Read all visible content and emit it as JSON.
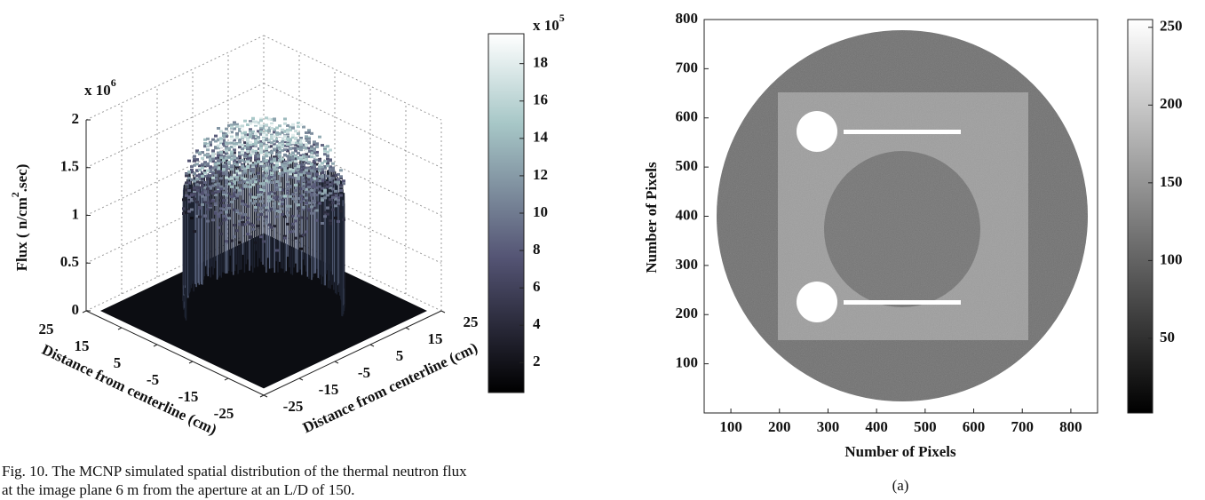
{
  "caption": [
    "Fig. 10.   The MCNP simulated spatial distribution of the thermal neutron flux",
    "at the image plane 6 m from the aperture at an L/D of 150."
  ],
  "chart_data": [
    {
      "type": "surface3d",
      "colormap": "bone",
      "grid": true,
      "xlabel": "Distance from centerline (cm)",
      "ylabel": "Distance from centerline (cm)",
      "zlabel": [
        "Flux ( n/cm",
        "2",
        ".sec)"
      ],
      "zmultiplier": [
        "x 10",
        "6"
      ],
      "xlim": [
        -25,
        25
      ],
      "xticks": [
        25,
        15,
        5,
        -5,
        -15,
        -25
      ],
      "ylim": [
        -25,
        25
      ],
      "yticks": [
        -25,
        -15,
        -5,
        5,
        15,
        25
      ],
      "zlim": [
        0,
        2
      ],
      "zticks": [
        0,
        0.5,
        1,
        1.5,
        2
      ],
      "colorbar": {
        "multiplier": [
          "x 10",
          "5"
        ],
        "clim": [
          0.4,
          19.6
        ],
        "ticks": [
          2,
          4,
          6,
          8,
          10,
          12,
          14,
          16,
          18
        ]
      }
    },
    {
      "type": "image",
      "colormap": "gray",
      "xlabel": "Number of Pixels",
      "ylabel": "Number of Pixels",
      "xlim": [
        45,
        855
      ],
      "xticks": [
        100,
        200,
        300,
        400,
        500,
        600,
        700,
        800
      ],
      "ylim": [
        0,
        800
      ],
      "yticks": [
        100,
        200,
        300,
        400,
        500,
        600,
        700,
        800
      ],
      "colorbar": {
        "clim": [
          2,
          255
        ],
        "ticks": [
          50,
          100,
          150,
          200,
          250
        ]
      },
      "subcaption": "(a)"
    }
  ]
}
